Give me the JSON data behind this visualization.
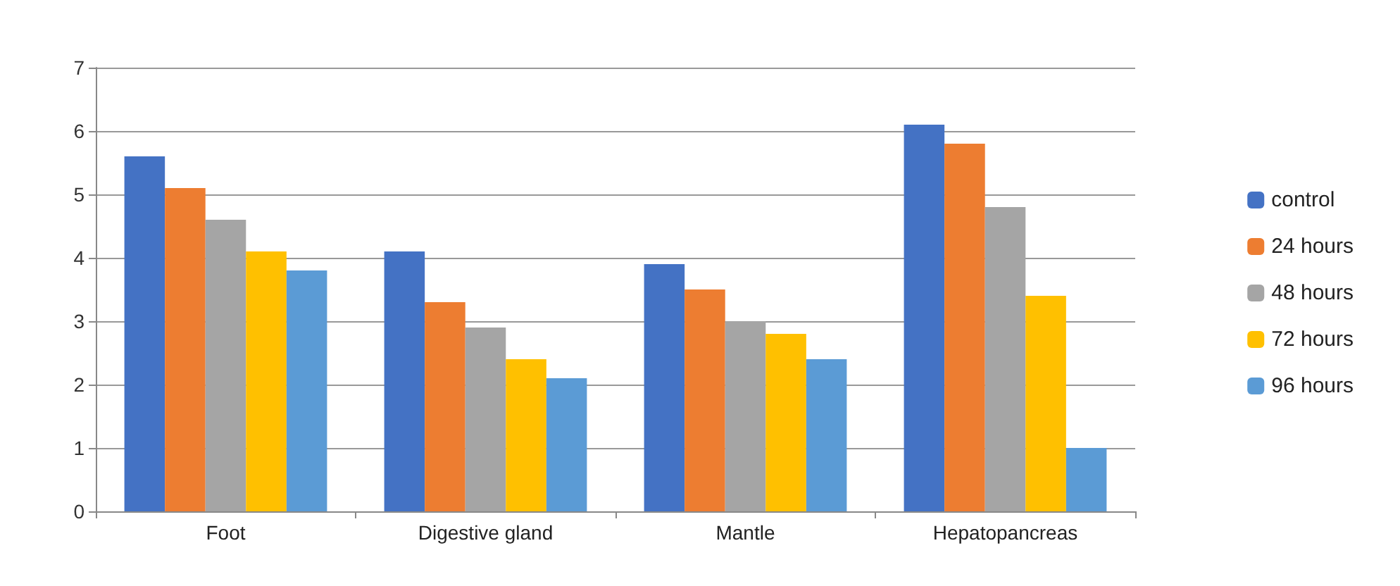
{
  "chart_data": {
    "type": "bar",
    "categories": [
      "Foot",
      "Digestive gland",
      "Mantle",
      "Hepatopancreas"
    ],
    "series": [
      {
        "name": "control",
        "color": "#4472c4",
        "values": [
          5.6,
          4.1,
          3.9,
          6.1
        ]
      },
      {
        "name": "24 hours",
        "color": "#ed7d31",
        "values": [
          5.1,
          3.3,
          3.5,
          5.8
        ]
      },
      {
        "name": "48 hours",
        "color": "#a5a5a5",
        "values": [
          4.6,
          2.9,
          3.0,
          4.8
        ]
      },
      {
        "name": "72 hours",
        "color": "#ffc000",
        "values": [
          4.1,
          2.4,
          2.8,
          3.4
        ]
      },
      {
        "name": "96 hours",
        "color": "#5b9bd5",
        "values": [
          3.8,
          2.1,
          2.4,
          1.0
        ]
      }
    ],
    "ylim": [
      0,
      7
    ],
    "yticks": [
      0,
      1,
      2,
      3,
      4,
      5,
      6,
      7
    ],
    "grid": "y",
    "legend": "right"
  }
}
